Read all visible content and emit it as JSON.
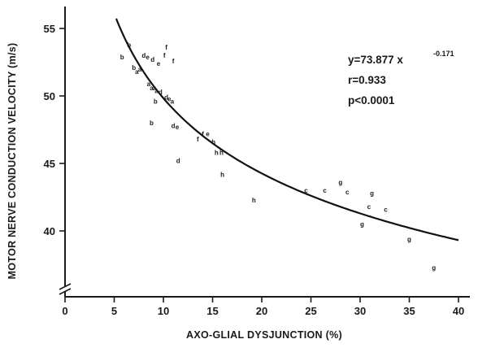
{
  "chart_data": {
    "type": "scatter",
    "xlabel": "AXO-GLIAL DYSJUNCTION (%)",
    "ylabel": "MOTOR NERVE CONDUCTION VELOCITY (m/s)",
    "xlim": [
      0,
      42
    ],
    "ylim": [
      37,
      56.5
    ],
    "xticks": [
      0,
      5,
      10,
      15,
      20,
      25,
      30,
      35,
      40
    ],
    "yticks": [
      40,
      45,
      50,
      55
    ],
    "axis_break": true,
    "grid": false,
    "annotation": {
      "equation_prefix": "y=73.877 x",
      "equation_exponent": "-0.171",
      "r": "r=0.933",
      "p": "p<0.0001"
    },
    "fit": {
      "a": 73.877,
      "b": -0.171,
      "x_range": [
        5.2,
        40
      ]
    },
    "points": [
      {
        "x": 5.8,
        "y": 52.9,
        "label": "b"
      },
      {
        "x": 6.5,
        "y": 53.8,
        "label": "b"
      },
      {
        "x": 7.0,
        "y": 52.1,
        "label": "b"
      },
      {
        "x": 7.3,
        "y": 51.8,
        "label": "a"
      },
      {
        "x": 7.6,
        "y": 52.0,
        "label": "a"
      },
      {
        "x": 8.0,
        "y": 53.0,
        "label": "d"
      },
      {
        "x": 8.4,
        "y": 52.9,
        "label": "e"
      },
      {
        "x": 8.9,
        "y": 52.7,
        "label": "d"
      },
      {
        "x": 9.5,
        "y": 52.4,
        "label": "e"
      },
      {
        "x": 10.1,
        "y": 53.0,
        "label": "f"
      },
      {
        "x": 10.3,
        "y": 53.6,
        "label": "f"
      },
      {
        "x": 11.0,
        "y": 52.6,
        "label": "f"
      },
      {
        "x": 8.5,
        "y": 50.9,
        "label": "a"
      },
      {
        "x": 8.8,
        "y": 50.6,
        "label": "a"
      },
      {
        "x": 9.1,
        "y": 50.6,
        "label": "a"
      },
      {
        "x": 9.3,
        "y": 50.4,
        "label": "a"
      },
      {
        "x": 9.7,
        "y": 50.3,
        "label": "d"
      },
      {
        "x": 10.3,
        "y": 49.9,
        "label": "d"
      },
      {
        "x": 10.6,
        "y": 49.8,
        "label": "e"
      },
      {
        "x": 9.2,
        "y": 49.6,
        "label": "b"
      },
      {
        "x": 10.9,
        "y": 49.6,
        "label": "a"
      },
      {
        "x": 8.8,
        "y": 48.0,
        "label": "b"
      },
      {
        "x": 11.0,
        "y": 47.8,
        "label": "d"
      },
      {
        "x": 11.4,
        "y": 47.7,
        "label": "e"
      },
      {
        "x": 14.0,
        "y": 47.2,
        "label": "f"
      },
      {
        "x": 14.5,
        "y": 47.2,
        "label": "e"
      },
      {
        "x": 13.5,
        "y": 46.8,
        "label": "f"
      },
      {
        "x": 15.1,
        "y": 46.6,
        "label": "h"
      },
      {
        "x": 15.4,
        "y": 45.8,
        "label": "h"
      },
      {
        "x": 15.9,
        "y": 45.8,
        "label": "h"
      },
      {
        "x": 11.5,
        "y": 45.2,
        "label": "d"
      },
      {
        "x": 16.0,
        "y": 44.2,
        "label": "h"
      },
      {
        "x": 19.2,
        "y": 42.3,
        "label": "h"
      },
      {
        "x": 24.5,
        "y": 43.0,
        "label": "c"
      },
      {
        "x": 26.4,
        "y": 43.0,
        "label": "c"
      },
      {
        "x": 28.0,
        "y": 43.6,
        "label": "g"
      },
      {
        "x": 28.7,
        "y": 42.9,
        "label": "c"
      },
      {
        "x": 31.2,
        "y": 42.8,
        "label": "g"
      },
      {
        "x": 30.9,
        "y": 41.8,
        "label": "c"
      },
      {
        "x": 32.6,
        "y": 41.6,
        "label": "c"
      },
      {
        "x": 30.2,
        "y": 40.5,
        "label": "g"
      },
      {
        "x": 35.0,
        "y": 39.4,
        "label": "g"
      },
      {
        "x": 37.5,
        "y": 37.3,
        "label": "g"
      }
    ]
  }
}
